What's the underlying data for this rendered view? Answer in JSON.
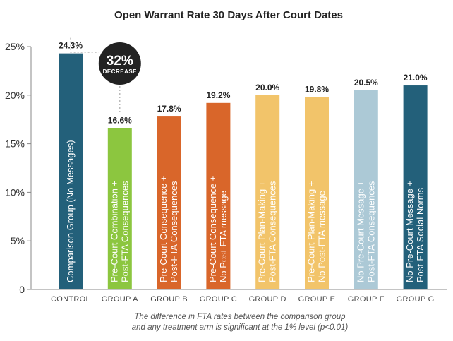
{
  "chart_data": {
    "type": "bar",
    "title": "Open Warrant Rate 30 Days After Court Dates",
    "ylim": [
      0,
      25
    ],
    "yticks": [
      "0",
      "5%",
      "10%",
      "15%",
      "20%",
      "25%"
    ],
    "ytick_values": [
      0,
      5,
      10,
      15,
      20,
      25
    ],
    "grid": false,
    "categories": [
      "CONTROL",
      "GROUP A",
      "GROUP B",
      "GROUP C",
      "GROUP D",
      "GROUP E",
      "GROUP F",
      "GROUP G"
    ],
    "values": [
      24.3,
      16.6,
      17.8,
      19.2,
      20.0,
      19.8,
      20.5,
      21.0
    ],
    "value_labels": [
      "24.3%",
      "16.6%",
      "17.8%",
      "19.2%",
      "20.0%",
      "19.8%",
      "20.5%",
      "21.0%"
    ],
    "bar_labels": [
      [
        "Comparison Group (No Messages)"
      ],
      [
        "Pre-Court Combination +",
        "Post-FTA Consequences"
      ],
      [
        "Pre-Court Consequence +",
        "Post-FTA Consequences"
      ],
      [
        "Pre-Court Consequence +",
        "No Post-FTA message"
      ],
      [
        "Pre-Court Plan-Making +",
        "Post-FTA Consequences"
      ],
      [
        "Pre-Court Plan-Making +",
        "No Post-FTA message"
      ],
      [
        "No Pre-Court Message +",
        "Post-FTA Consequences"
      ],
      [
        "No Pre-Court Message +",
        "Post-FTA Social Norms"
      ]
    ],
    "colors": [
      "#23607a",
      "#8cc63f",
      "#d9662a",
      "#d9662a",
      "#f2c46a",
      "#f2c46a",
      "#acc9d6",
      "#23607a"
    ],
    "callout": {
      "big": "32%",
      "small": "DECREASE"
    },
    "footnote": [
      "The difference in FTA rates between the comparison group",
      "and any treatment arm is significant at the 1% level (p<0.01)"
    ]
  }
}
